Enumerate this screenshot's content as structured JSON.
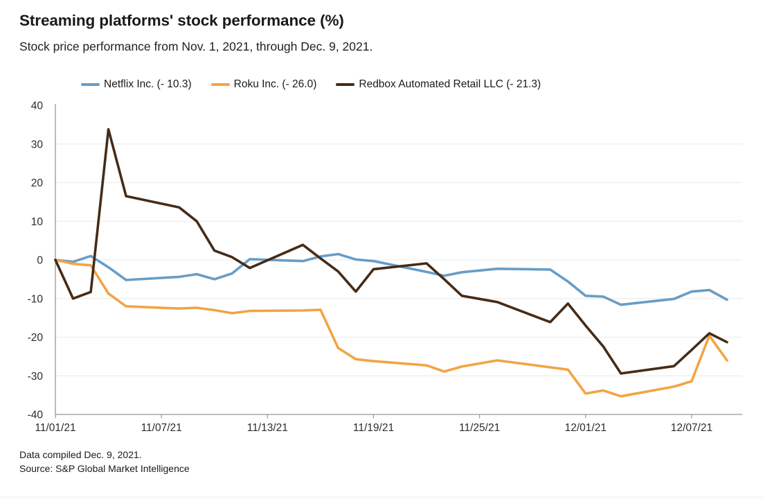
{
  "title": "Streaming platforms' stock performance (%)",
  "subtitle": "Stock price performance from Nov. 1, 2021, through Dec. 9, 2021.",
  "footer": {
    "line1": "Data compiled Dec. 9, 2021.",
    "line2": "Source: S&P Global Market Intelligence"
  },
  "colors": {
    "netflix_blue": "#689DC6",
    "roku_orange": "#F2A444",
    "redbox_brown": "#452C18",
    "gridline": "#ededed",
    "axis": "#969696",
    "tick_text": "#2b2b2b"
  },
  "chart_data": {
    "type": "line",
    "title": "Streaming platforms' stock performance (%)",
    "xlabel": "",
    "ylabel": "",
    "ylim": [
      -40,
      40
    ],
    "grid": true,
    "legend_position": "top",
    "x_dates": [
      "11/01/21",
      "11/02/21",
      "11/03/21",
      "11/04/21",
      "11/05/21",
      "11/08/21",
      "11/09/21",
      "11/10/21",
      "11/11/21",
      "11/12/21",
      "11/15/21",
      "11/16/21",
      "11/17/21",
      "11/18/21",
      "11/19/21",
      "11/22/21",
      "11/23/21",
      "11/24/21",
      "11/26/21",
      "11/29/21",
      "11/30/21",
      "12/01/21",
      "12/02/21",
      "12/03/21",
      "12/06/21",
      "12/07/21",
      "12/08/21",
      "12/09/21"
    ],
    "day_offsets": [
      0,
      1,
      2,
      3,
      4,
      7,
      8,
      9,
      10,
      11,
      14,
      15,
      16,
      17,
      18,
      21,
      22,
      23,
      25,
      28,
      29,
      30,
      31,
      32,
      35,
      36,
      37,
      38
    ],
    "x_ticks": {
      "day_offsets": [
        0,
        6,
        12,
        18,
        24,
        30,
        36
      ],
      "labels": [
        "11/01/21",
        "11/07/21",
        "11/13/21",
        "11/19/21",
        "11/25/21",
        "12/01/21",
        "12/07/21"
      ]
    },
    "y_ticks": [
      40,
      30,
      20,
      10,
      0,
      -10,
      -20,
      -30,
      -40
    ],
    "series": [
      {
        "name": "Netflix Inc.",
        "legend_label": "Netflix Inc. (- 10.3)",
        "final_change_pct": -10.3,
        "color": "#689DC6",
        "values": [
          0,
          -0.5,
          1.0,
          -1.9,
          -5.2,
          -4.4,
          -3.7,
          -5.0,
          -3.5,
          0.2,
          -0.3,
          0.9,
          1.5,
          0.1,
          -0.3,
          -3.1,
          -4.1,
          -3.2,
          -2.3,
          -2.5,
          -5.6,
          -9.3,
          -9.5,
          -11.6,
          -10.1,
          -8.2,
          -7.8,
          -10.3
        ]
      },
      {
        "name": "Roku Inc.",
        "legend_label": "Roku Inc. (- 26.0)",
        "final_change_pct": -26.0,
        "color": "#F2A444",
        "values": [
          0,
          -1.0,
          -1.4,
          -8.7,
          -12.0,
          -12.6,
          -12.4,
          -13.0,
          -13.8,
          -13.2,
          -13.1,
          -12.9,
          -22.8,
          -25.7,
          -26.2,
          -27.3,
          -28.9,
          -27.6,
          -26.0,
          -27.8,
          -28.4,
          -34.6,
          -33.8,
          -35.3,
          -32.8,
          -31.4,
          -19.6,
          -26.0
        ]
      },
      {
        "name": "Redbox Automated Retail LLC",
        "legend_label": "Redbox Automated Retail LLC (- 21.3)",
        "final_change_pct": -21.3,
        "color": "#452C18",
        "values": [
          0,
          -10.0,
          -8.3,
          33.8,
          16.5,
          13.6,
          10.0,
          2.4,
          0.7,
          -2.1,
          3.9,
          0.4,
          -3.0,
          -8.2,
          -2.4,
          -0.9,
          -5.0,
          -9.3,
          -10.9,
          -16.1,
          -11.3,
          -17.0,
          -22.4,
          -29.4,
          -27.5,
          -23.3,
          -19.0,
          -21.3
        ]
      }
    ]
  }
}
